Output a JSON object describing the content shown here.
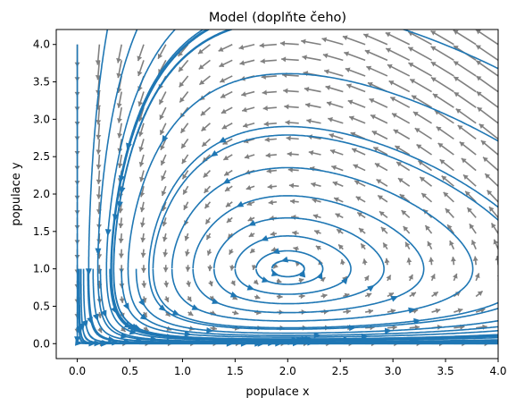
{
  "chart_data": {
    "type": "streamplot",
    "title": "Model (doplňte čeho)",
    "xlabel": "populace x",
    "ylabel": "populace y",
    "xlim": [
      -0.2,
      4.0
    ],
    "ylim": [
      -0.2,
      4.2
    ],
    "xticks": [
      "0.0",
      "0.5",
      "1.0",
      "1.5",
      "2.0",
      "2.5",
      "3.0",
      "3.5",
      "4.0"
    ],
    "yticks": [
      "0.0",
      "0.5",
      "1.0",
      "1.5",
      "2.0",
      "2.5",
      "3.0",
      "3.5",
      "4.0"
    ],
    "grid": false,
    "equilibrium": [
      2.0,
      1.0
    ],
    "stream_color": "#1f77b4",
    "quiver_color": "#808080",
    "vector_field": {
      "dx": "x - x*y",
      "dy": "-2*y + x*y"
    }
  }
}
